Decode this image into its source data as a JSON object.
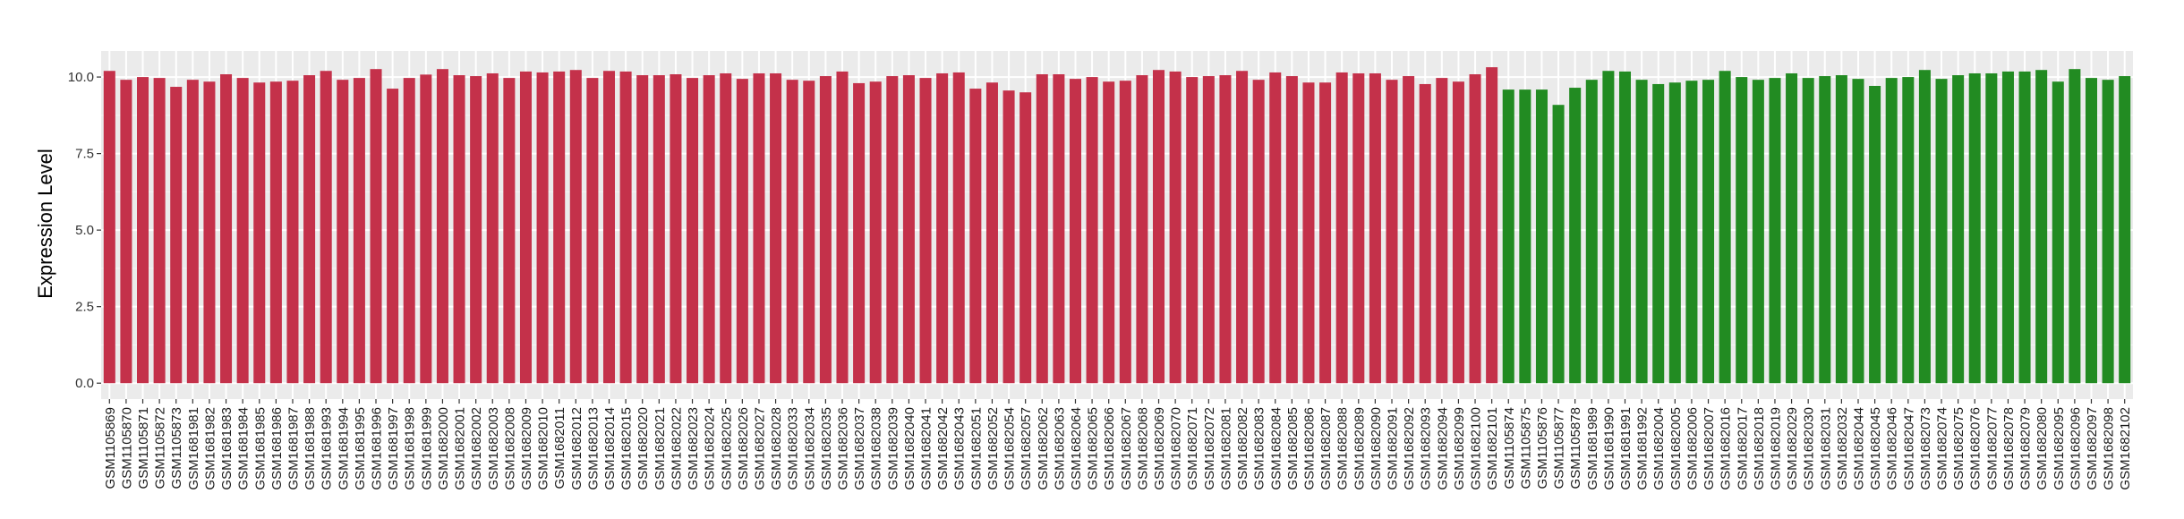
{
  "chart_data": {
    "type": "bar",
    "title": "",
    "xlabel": "",
    "ylabel": "Expression Level",
    "ylim": [
      -0.52,
      10.85
    ],
    "yticks": [
      "0.0",
      "2.5",
      "5.0",
      "7.5",
      "10.0"
    ],
    "ytick_values": [
      0,
      2.5,
      5,
      7.5,
      10
    ],
    "grid": true,
    "legend": "none",
    "panel_background": "#EBEBEB",
    "series": [
      {
        "color": "#C4314A",
        "categories": [
          "GSM1105869",
          "GSM1105870",
          "GSM1105871",
          "GSM1105872",
          "GSM1105873",
          "GSM1681981",
          "GSM1681982",
          "GSM1681983",
          "GSM1681984",
          "GSM1681985",
          "GSM1681986",
          "GSM1681987",
          "GSM1681988",
          "GSM1681993",
          "GSM1681994",
          "GSM1681995",
          "GSM1681996",
          "GSM1681997",
          "GSM1681998",
          "GSM1681999",
          "GSM1682000",
          "GSM1682001",
          "GSM1682002",
          "GSM1682003",
          "GSM1682008",
          "GSM1682009",
          "GSM1682010",
          "GSM1682011",
          "GSM1682012",
          "GSM1682013",
          "GSM1682014",
          "GSM1682015",
          "GSM1682020",
          "GSM1682021",
          "GSM1682022",
          "GSM1682023",
          "GSM1682024",
          "GSM1682025",
          "GSM1682026",
          "GSM1682027",
          "GSM1682028",
          "GSM1682033",
          "GSM1682034",
          "GSM1682035",
          "GSM1682036",
          "GSM1682037",
          "GSM1682038",
          "GSM1682039",
          "GSM1682040",
          "GSM1682041",
          "GSM1682042",
          "GSM1682043",
          "GSM1682051",
          "GSM1682052",
          "GSM1682054",
          "GSM1682057",
          "GSM1682062",
          "GSM1682063",
          "GSM1682064",
          "GSM1682065",
          "GSM1682066",
          "GSM1682067",
          "GSM1682068",
          "GSM1682069",
          "GSM1682070",
          "GSM1682071",
          "GSM1682072",
          "GSM1682081",
          "GSM1682082",
          "GSM1682083",
          "GSM1682084",
          "GSM1682085",
          "GSM1682086",
          "GSM1682087",
          "GSM1682088",
          "GSM1682089",
          "GSM1682090",
          "GSM1682091",
          "GSM1682092",
          "GSM1682093",
          "GSM1682094",
          "GSM1682099",
          "GSM1682100",
          "GSM1682101"
        ],
        "values": [
          10.2,
          9.91,
          10.0,
          9.97,
          9.68,
          9.91,
          9.85,
          10.09,
          9.97,
          9.82,
          9.85,
          9.88,
          10.06,
          10.2,
          9.91,
          9.97,
          10.26,
          9.62,
          9.97,
          10.08,
          10.26,
          10.06,
          10.03,
          10.12,
          9.97,
          10.18,
          10.15,
          10.18,
          10.23,
          9.97,
          10.2,
          10.18,
          10.06,
          10.06,
          10.09,
          9.97,
          10.06,
          10.12,
          9.94,
          10.12,
          10.12,
          9.91,
          9.88,
          10.03,
          10.18,
          9.8,
          9.85,
          10.03,
          10.06,
          9.97,
          10.12,
          10.15,
          9.62,
          9.82,
          9.56,
          9.5,
          10.09,
          10.09,
          9.94,
          10.0,
          9.85,
          9.88,
          10.06,
          10.23,
          10.18,
          10.0,
          10.03,
          10.06,
          10.2,
          9.91,
          10.15,
          10.03,
          9.82,
          9.82,
          10.15,
          10.12,
          10.12,
          9.91,
          10.03,
          9.77,
          9.97,
          9.85,
          10.09,
          10.32
        ]
      },
      {
        "color": "#228B22",
        "categories": [
          "GSM1105874",
          "GSM1105875",
          "GSM1105876",
          "GSM1105877",
          "GSM1105878",
          "GSM1681989",
          "GSM1681990",
          "GSM1681991",
          "GSM1681992",
          "GSM1682004",
          "GSM1682005",
          "GSM1682006",
          "GSM1682007",
          "GSM1682016",
          "GSM1682017",
          "GSM1682018",
          "GSM1682019",
          "GSM1682029",
          "GSM1682030",
          "GSM1682031",
          "GSM1682032",
          "GSM1682044",
          "GSM1682045",
          "GSM1682046",
          "GSM1682047",
          "GSM1682073",
          "GSM1682074",
          "GSM1682075",
          "GSM1682076",
          "GSM1682077",
          "GSM1682078",
          "GSM1682079",
          "GSM1682080",
          "GSM1682095",
          "GSM1682096",
          "GSM1682097",
          "GSM1682098",
          "GSM1682102"
        ],
        "values": [
          9.59,
          9.59,
          9.59,
          9.09,
          9.65,
          9.91,
          10.2,
          10.18,
          9.91,
          9.77,
          9.82,
          9.88,
          9.91,
          10.2,
          10.0,
          9.91,
          9.97,
          10.12,
          9.97,
          10.03,
          10.06,
          9.94,
          9.71,
          9.97,
          10.0,
          10.23,
          9.94,
          10.06,
          10.12,
          10.12,
          10.18,
          10.18,
          10.23,
          9.85,
          10.26,
          9.97,
          9.91,
          10.03
        ]
      }
    ]
  }
}
